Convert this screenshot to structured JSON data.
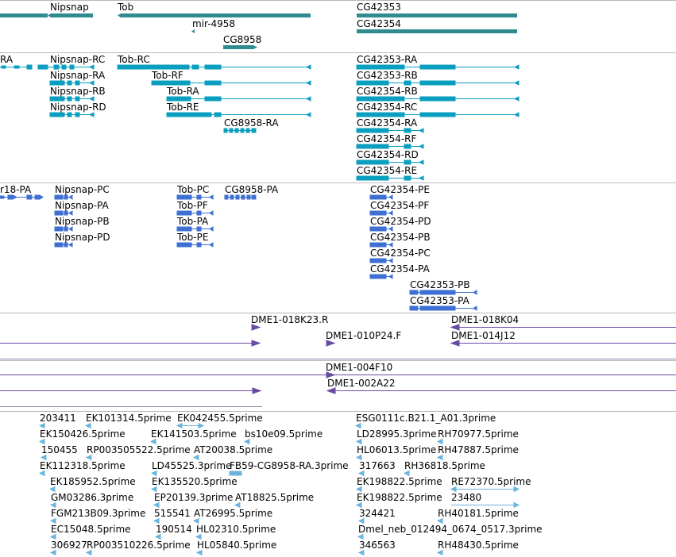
{
  "colors": {
    "gene": "#2e8b8f",
    "transcript": "#0a9fbf",
    "protein": "#3e6fd2",
    "clone": "#6a4aa5",
    "est": "#6cb3dd",
    "divider": "#b8b8b8"
  },
  "tracks": {
    "genes": {
      "labels": [
        "Nipsnap",
        "Tob",
        "mir-4958",
        "CG8958",
        "CG42353",
        "CG42354"
      ]
    },
    "transcripts": {
      "labels": [
        "RA",
        "Nipsnap-RC",
        "Nipsnap-RA",
        "Nipsnap-RB",
        "Nipsnap-RD",
        "Tob-RC",
        "Tob-RF",
        "Tob-RA",
        "Tob-RE",
        "CG8958-RA",
        "CG42353-RA",
        "CG42353-RB",
        "CG42354-RB",
        "CG42354-RC",
        "CG42354-RA",
        "CG42354-RF",
        "CG42354-RD",
        "CG42354-RE"
      ]
    },
    "proteins": {
      "labels": [
        "r18-PA",
        "Nipsnap-PC",
        "Nipsnap-PA",
        "Nipsnap-PB",
        "Nipsnap-PD",
        "Tob-PC",
        "Tob-PF",
        "Tob-PA",
        "Tob-PE",
        "CG8958-PA",
        "CG42354-PE",
        "CG42354-PF",
        "CG42354-PD",
        "CG42354-PB",
        "CG42354-PC",
        "CG42354-PA",
        "CG42353-PB",
        "CG42353-PA"
      ]
    },
    "clones": {
      "labels": [
        "DME1-018K23.R",
        "DME1-018K04",
        "DME1-010P24.F",
        "DME1-014J12",
        "DME1-004F10",
        "DME1-002A22"
      ]
    },
    "ests": {
      "labels": [
        "203411",
        "EK101314.5prime",
        "EK042455.5prime",
        "EK150426.5prime",
        "EK141503.5prime",
        "bs10e09.5prime",
        "150455",
        "RP003505522.5prime",
        "AT20038.5prime",
        "EK112318.5prime",
        "LD45525.3prime",
        "FB59-CG8958-RA.3prime",
        "EK185952.5prime",
        "EK135520.5prime",
        "GM03286.3prime",
        "EP20139.3prime",
        "AT18825.5prime",
        "FGM213B09.3prime",
        "515541",
        "AT26995.5prime",
        "EC15048.5prime",
        "190514",
        "HL02310.5prime",
        "306927",
        "RP003510226.5prime",
        "HL05840.5prime",
        "ESG0111c.B21.1_A01.3prime",
        "LD28995.3prime",
        "RH70977.5prime",
        "HL06013.5prime",
        "RH47887.5prime",
        "317663",
        "RH36818.5prime",
        "EK198822.5prime",
        "RE72370.5prime",
        "EK198822.5prime",
        "23480",
        "324421",
        "RH40181.5prime",
        "Dmel_neb_012494_0674_0517.3prime",
        "346563",
        "RH48430.5prime"
      ]
    }
  }
}
